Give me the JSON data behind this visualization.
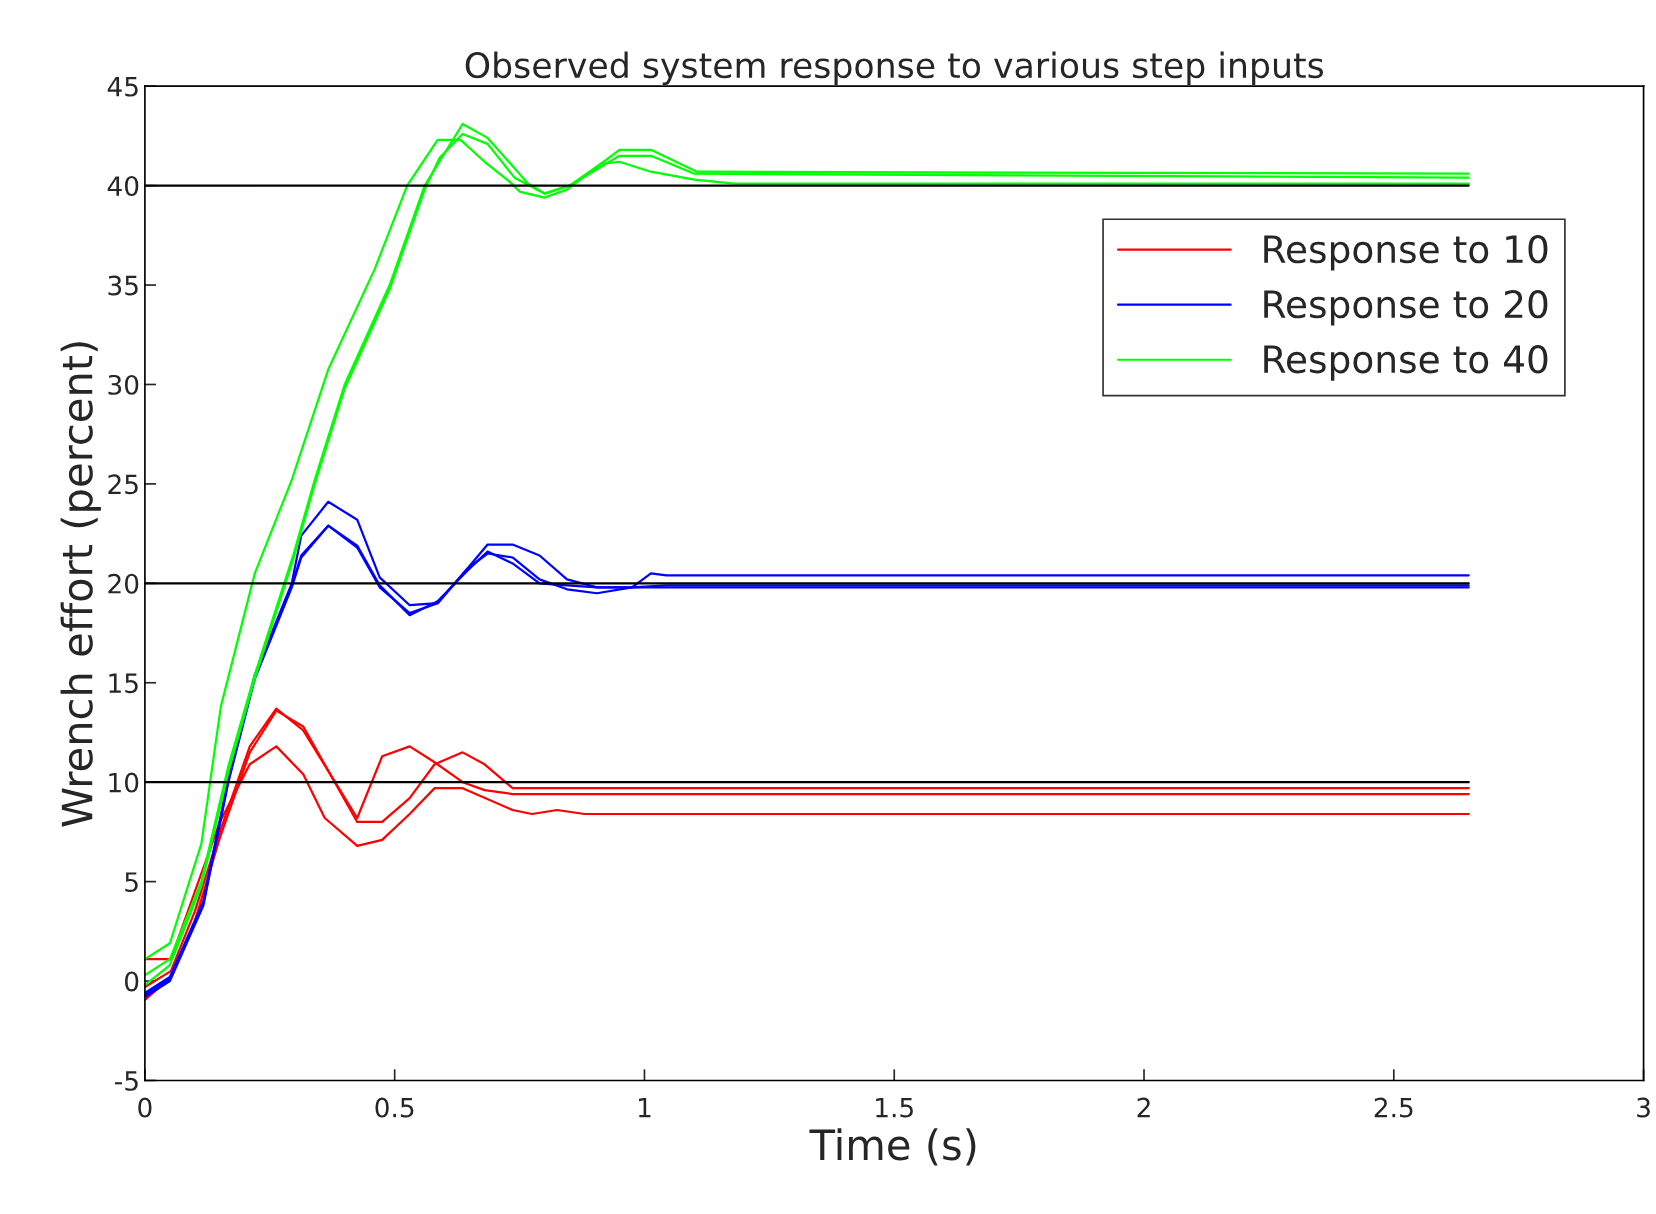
{
  "chart_data": {
    "type": "line",
    "title": "Observed system response to various step inputs",
    "xlabel": "Time (s)",
    "ylabel": "Wrench effort (percent)",
    "xlim": [
      0,
      3
    ],
    "xticks": [
      0,
      0.5,
      1,
      1.5,
      2,
      2.5,
      3
    ],
    "ylim": [
      -5,
      45
    ],
    "yticks": [
      -5,
      0,
      5,
      10,
      15,
      20,
      25,
      30,
      35,
      40,
      45
    ],
    "grid": false,
    "legend": "top right",
    "line_style": "solid",
    "marker": "none",
    "series": [
      {
        "name": "Response to 10",
        "color": "#ff0000",
        "x": [
          0,
          0.052,
          0.1,
          0.15,
          0.21,
          0.263,
          0.317,
          0.425,
          0.475,
          0.53,
          0.58,
          0.636,
          0.68,
          0.736,
          2.65
        ],
        "values": [
          -0.3,
          0.5,
          3.5,
          7.5,
          11.8,
          13.7,
          12.6,
          8.2,
          11.3,
          11.8,
          11.0,
          10.0,
          9.6,
          9.4,
          9.4
        ]
      },
      {
        "color": "#ff0000",
        "x": [
          0,
          0.052,
          0.1,
          0.15,
          0.21,
          0.263,
          0.317,
          0.425,
          0.475,
          0.53,
          0.58,
          0.636,
          0.68,
          0.736,
          2.65
        ],
        "values": [
          -0.95,
          0.2,
          3.0,
          7.2,
          11.5,
          13.6,
          12.8,
          8.0,
          8.0,
          9.2,
          10.9,
          11.5,
          10.9,
          9.7,
          9.7
        ]
      },
      {
        "color": "#ff0000",
        "x": [
          0,
          0.052,
          0.1,
          0.15,
          0.21,
          0.263,
          0.317,
          0.36,
          0.425,
          0.475,
          0.53,
          0.58,
          0.636,
          0.736,
          0.775,
          0.825,
          0.88,
          2.65
        ],
        "values": [
          1.1,
          1.1,
          4.5,
          8.0,
          10.9,
          11.8,
          10.4,
          8.2,
          6.8,
          7.1,
          8.4,
          9.7,
          9.7,
          8.6,
          8.4,
          8.6,
          8.4,
          8.4
        ]
      },
      {
        "name": "Response to 20",
        "color": "#0000ff",
        "x": [
          0,
          0.05,
          0.117,
          0.167,
          0.22,
          0.294,
          0.313,
          0.367,
          0.425,
          0.47,
          0.53,
          0.586,
          0.644,
          0.686,
          0.736,
          0.79,
          0.845,
          0.905,
          0.975,
          1.013,
          1.044,
          2.65
        ],
        "values": [
          -0.6,
          0.2,
          4.0,
          10.2,
          15.4,
          20.0,
          22.4,
          24.1,
          23.2,
          20.3,
          18.9,
          19.0,
          20.7,
          21.95,
          21.95,
          21.4,
          20.2,
          19.8,
          19.8,
          20.5,
          20.4,
          20.4
        ]
      },
      {
        "color": "#0000ff",
        "x": [
          0,
          0.05,
          0.117,
          0.167,
          0.22,
          0.294,
          0.313,
          0.367,
          0.425,
          0.47,
          0.53,
          0.586,
          0.644,
          0.686,
          0.736,
          0.79,
          0.845,
          0.905,
          0.975,
          1.044,
          2.65
        ],
        "values": [
          -0.8,
          0,
          3.8,
          10.0,
          15.2,
          19.8,
          21.3,
          22.9,
          21.8,
          19.8,
          18.5,
          19.0,
          20.7,
          21.5,
          21.3,
          20.2,
          19.7,
          19.5,
          19.8,
          19.9,
          19.9
        ]
      },
      {
        "color": "#0000ff",
        "x": [
          0,
          0.05,
          0.117,
          0.167,
          0.22,
          0.294,
          0.313,
          0.367,
          0.425,
          0.47,
          0.53,
          0.586,
          0.644,
          0.686,
          0.736,
          0.79,
          0.845,
          0.905,
          1.044,
          2.65
        ],
        "values": [
          -0.7,
          0.1,
          3.9,
          10.1,
          15.3,
          19.9,
          21.4,
          22.9,
          21.9,
          19.9,
          18.4,
          19.1,
          20.6,
          21.6,
          21.0,
          20.0,
          19.9,
          19.8,
          19.8,
          19.8
        ]
      },
      {
        "name": "Response to 40",
        "color": "#00ff00",
        "x": [
          0,
          0.05,
          0.113,
          0.152,
          0.22,
          0.294,
          0.367,
          0.46,
          0.525,
          0.586,
          0.632,
          0.68,
          0.73,
          0.75,
          0.8,
          0.845,
          0.913,
          0.95,
          1.013,
          1.1,
          1.18,
          2.65
        ],
        "values": [
          1.1,
          1.9,
          6.9,
          13.8,
          20.5,
          25.2,
          30.75,
          35.8,
          40,
          42.3,
          42.3,
          41.2,
          40.2,
          39.7,
          39.4,
          39.8,
          41.1,
          41.2,
          40.7,
          40.3,
          40.1,
          40.1
        ]
      },
      {
        "color": "#00ff00",
        "x": [
          0,
          0.05,
          0.113,
          0.167,
          0.22,
          0.298,
          0.34,
          0.4,
          0.49,
          0.56,
          0.636,
          0.686,
          0.732,
          0.767,
          0.8,
          0.85,
          0.913,
          0.95,
          1.013,
          1.105,
          2.65
        ],
        "values": [
          0.3,
          1.1,
          5,
          10.8,
          15.4,
          21.5,
          25.2,
          30,
          35,
          40,
          43.1,
          42.4,
          41.1,
          40.1,
          39.6,
          40,
          41.1,
          41.8,
          41.8,
          40.7,
          40.6
        ]
      },
      {
        "color": "#00ff00",
        "x": [
          0,
          0.05,
          0.113,
          0.167,
          0.22,
          0.298,
          0.34,
          0.4,
          0.49,
          0.56,
          0.59,
          0.636,
          0.686,
          0.74,
          0.8,
          0.85,
          0.95,
          1.013,
          1.1,
          2.65
        ],
        "values": [
          -0.2,
          0.8,
          4.8,
          10.5,
          15.2,
          21.3,
          25,
          29.8,
          34.8,
          39.8,
          41.4,
          42.6,
          42.1,
          40.4,
          39.6,
          40,
          41.5,
          41.5,
          40.6,
          40.4
        ]
      },
      {
        "color": "#000000",
        "x": [
          0,
          2.65
        ],
        "values": [
          10,
          10
        ]
      },
      {
        "color": "#000000",
        "x": [
          0,
          2.65
        ],
        "values": [
          20,
          20
        ]
      },
      {
        "color": "#000000",
        "x": [
          0,
          2.65
        ],
        "values": [
          40,
          40
        ]
      }
    ]
  }
}
